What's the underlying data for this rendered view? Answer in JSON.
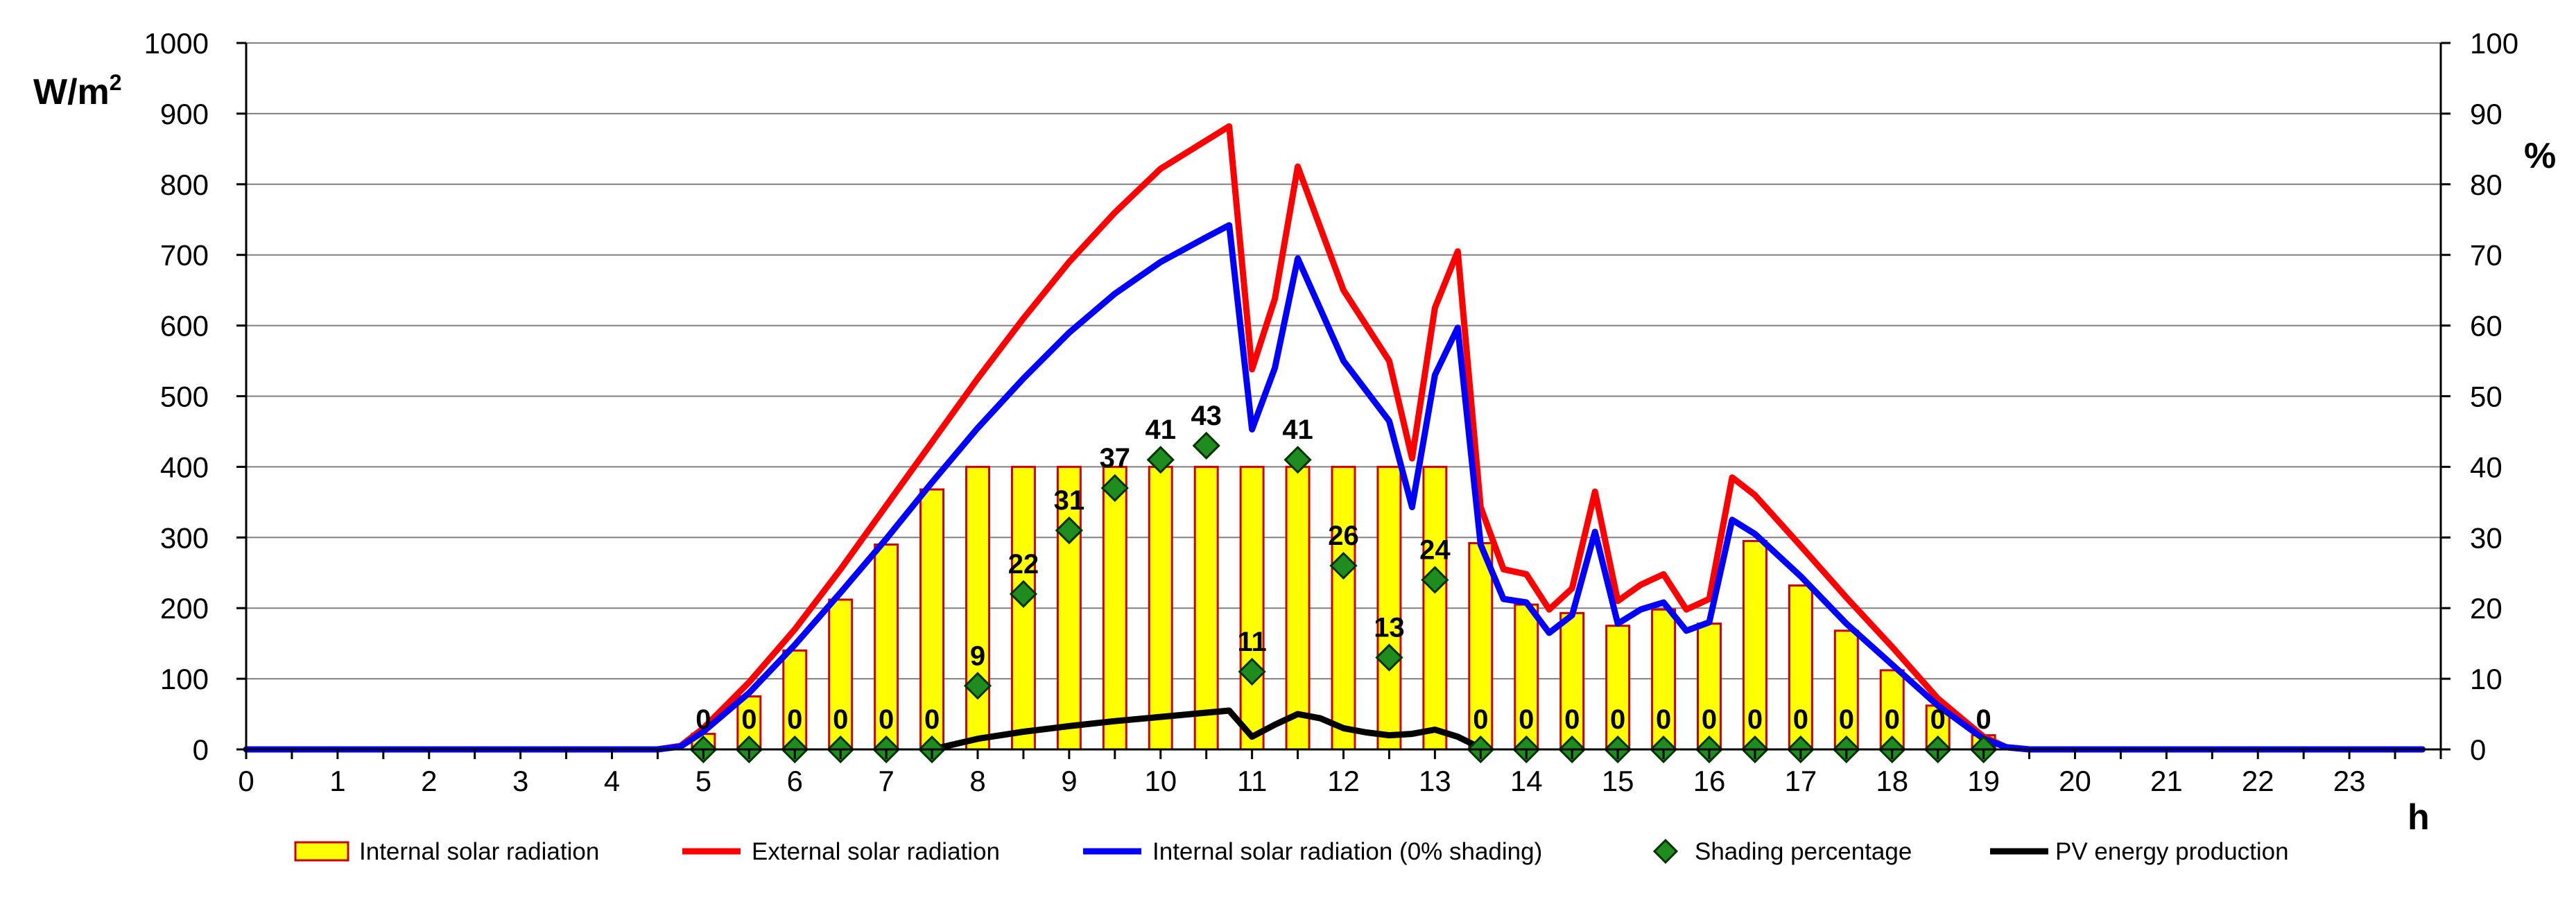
{
  "chart_data": {
    "type": "bar",
    "title": "",
    "xlabel": "h",
    "ylabel_left": "W/m",
    "ylabel_left_sup": "2",
    "ylabel_right": "%",
    "xlim": [
      0,
      24
    ],
    "ylim_left": [
      0,
      1000
    ],
    "ylim_right": [
      0,
      100
    ],
    "x_ticks": [
      "0",
      "1",
      "2",
      "3",
      "4",
      "5",
      "6",
      "7",
      "8",
      "9",
      "10",
      "11",
      "12",
      "13",
      "14",
      "15",
      "16",
      "17",
      "18",
      "19",
      "20",
      "21",
      "22",
      "23"
    ],
    "y_ticks_left": [
      "0",
      "100",
      "200",
      "300",
      "400",
      "500",
      "600",
      "700",
      "800",
      "900",
      "1000"
    ],
    "y_ticks_right": [
      "0",
      "10",
      "20",
      "30",
      "40",
      "50",
      "60",
      "70",
      "80",
      "90",
      "100"
    ],
    "grid": true,
    "legend": {
      "placement": "bottom",
      "entries": [
        "Internal solar radiation",
        "External solar radiation",
        "Internal solar radiation (0% shading)",
        "Shading percentage",
        "PV energy production"
      ]
    },
    "colors": {
      "bar_fill": "#ffff00",
      "bar_stroke": "#cc0000",
      "external": "#ff0000",
      "internal_free": "#0000ff",
      "shading_fill": "#1e8c1e",
      "shading_stroke": "#003300",
      "pv": "#000000",
      "grid": "#808080"
    },
    "series": [
      {
        "name": "Internal solar radiation",
        "type": "bar",
        "axis": "left",
        "x": [
          5,
          5.5,
          6,
          6.5,
          7,
          7.5,
          8,
          8.5,
          9,
          9.5,
          10,
          10.5,
          11,
          11.5,
          12,
          12.5,
          13,
          13.5,
          14,
          14.5,
          15,
          15.5,
          16,
          16.5,
          17,
          17.5,
          18,
          18.5,
          19
        ],
        "values": [
          22,
          75,
          140,
          212,
          290,
          368,
          400,
          400,
          400,
          400,
          400,
          400,
          400,
          400,
          400,
          400,
          400,
          292,
          205,
          193,
          175,
          198,
          178,
          295,
          232,
          168,
          112,
          62,
          20
        ]
      },
      {
        "name": "External solar radiation",
        "type": "line",
        "axis": "left",
        "x": [
          0,
          4.5,
          4.75,
          5,
          5.5,
          6,
          6.5,
          7,
          7.5,
          8,
          8.5,
          9,
          9.5,
          10,
          10.5,
          10.75,
          11,
          11.25,
          11.5,
          12,
          12.5,
          12.75,
          13,
          13.25,
          13.5,
          13.75,
          14,
          14.25,
          14.5,
          14.75,
          15,
          15.25,
          15.5,
          15.75,
          16,
          16.25,
          16.5,
          17,
          17.5,
          18,
          18.5,
          19,
          19.25,
          19.5,
          23.8
        ],
        "values": [
          0,
          0,
          5,
          30,
          95,
          170,
          255,
          345,
          435,
          525,
          610,
          690,
          760,
          822,
          862,
          882,
          538,
          638,
          825,
          650,
          550,
          412,
          625,
          705,
          343,
          255,
          248,
          198,
          228,
          365,
          210,
          233,
          248,
          198,
          213,
          385,
          360,
          288,
          215,
          145,
          72,
          18,
          3,
          0,
          0
        ]
      },
      {
        "name": "Internal solar radiation (0% shading)",
        "type": "line",
        "axis": "left",
        "x": [
          0,
          4.5,
          4.75,
          5,
          5.5,
          6,
          6.5,
          7,
          7.5,
          8,
          8.5,
          9,
          9.5,
          10,
          10.5,
          10.75,
          11,
          11.25,
          11.5,
          12,
          12.5,
          12.75,
          13,
          13.25,
          13.5,
          13.75,
          14,
          14.25,
          14.5,
          14.75,
          15,
          15.25,
          15.5,
          15.75,
          16,
          16.25,
          16.5,
          17,
          17.5,
          18,
          18.5,
          19,
          19.25,
          19.5,
          23.8
        ],
        "values": [
          0,
          0,
          4,
          25,
          80,
          148,
          222,
          298,
          378,
          455,
          525,
          590,
          645,
          690,
          725,
          742,
          453,
          540,
          695,
          550,
          465,
          343,
          530,
          597,
          290,
          213,
          208,
          165,
          190,
          308,
          178,
          198,
          208,
          168,
          180,
          325,
          305,
          245,
          178,
          120,
          62,
          15,
          3,
          0,
          0
        ]
      },
      {
        "name": "Shading percentage",
        "type": "scatter",
        "axis": "right",
        "x": [
          5,
          5.5,
          6,
          6.5,
          7,
          7.5,
          8,
          8.5,
          9,
          9.5,
          10,
          10.5,
          11,
          11.5,
          12,
          12.5,
          13,
          13.5,
          14,
          14.5,
          15,
          15.5,
          16,
          16.5,
          17,
          17.5,
          18,
          18.5,
          19
        ],
        "values": [
          0,
          0,
          0,
          0,
          0,
          0,
          9,
          22,
          31,
          37,
          41,
          43,
          11,
          41,
          26,
          13,
          24,
          0,
          0,
          0,
          0,
          0,
          0,
          0,
          0,
          0,
          0,
          0,
          0
        ],
        "labels": [
          "0",
          "0",
          "0",
          "0",
          "0",
          "0",
          "9",
          "22",
          "31",
          "37",
          "41",
          "43",
          "11",
          "41",
          "26",
          "13",
          "24",
          "0",
          "0",
          "0",
          "0",
          "0",
          "0",
          "0",
          "0",
          "0",
          "0",
          "0",
          "0"
        ]
      },
      {
        "name": "PV energy production",
        "type": "line",
        "axis": "left",
        "x": [
          7.5,
          8,
          8.5,
          9,
          9.5,
          10,
          10.5,
          10.75,
          11,
          11.25,
          11.5,
          11.75,
          12,
          12.25,
          12.5,
          12.75,
          13,
          13.25,
          13.5
        ],
        "values": [
          0,
          15,
          25,
          33,
          40,
          46,
          52,
          55,
          18,
          35,
          50,
          44,
          30,
          24,
          20,
          22,
          28,
          18,
          2
        ]
      }
    ]
  }
}
